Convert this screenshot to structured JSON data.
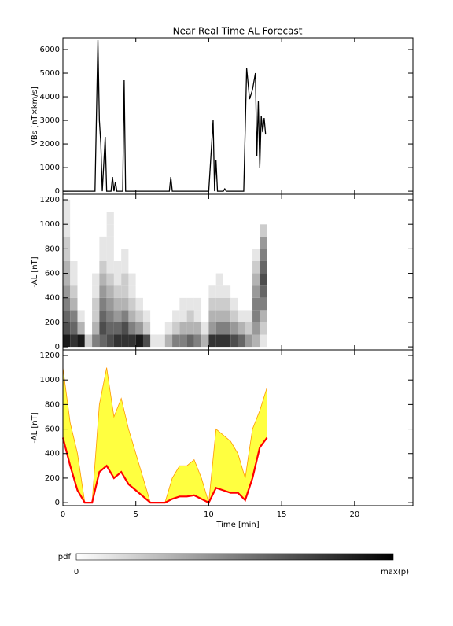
{
  "chart_data": [
    {
      "type": "line",
      "title": "Near Real Time AL Forecast",
      "ylabel": "VBs [nT×km/s]",
      "x": [
        0,
        2.2,
        2.4,
        2.5,
        2.6,
        2.7,
        2.9,
        3.0,
        3.3,
        3.4,
        3.5,
        3.6,
        3.7,
        4.1,
        4.2,
        4.3,
        7.3,
        7.4,
        7.5,
        10.0,
        10.3,
        10.4,
        10.5,
        10.6,
        11.0,
        11.1,
        11.2,
        12.4,
        12.6,
        12.8,
        13.0,
        13.2,
        13.3,
        13.4,
        13.5,
        13.6,
        13.7,
        13.8,
        13.9
      ],
      "series": [
        {
          "color": "#000000",
          "values": [
            0,
            0,
            6400,
            3000,
            2000,
            0,
            2300,
            0,
            0,
            600,
            0,
            400,
            0,
            0,
            4700,
            0,
            0,
            600,
            0,
            0,
            3000,
            0,
            1300,
            0,
            0,
            100,
            0,
            0,
            5200,
            3900,
            4300,
            5000,
            1500,
            3800,
            1000,
            3200,
            2500,
            3100,
            2400
          ]
        }
      ],
      "xlim": [
        0,
        24
      ],
      "xticks": [
        0,
        5,
        10,
        15,
        20
      ],
      "ylim": [
        -130,
        6500
      ],
      "yticks": [
        0,
        1000,
        2000,
        3000,
        4000,
        5000,
        6000
      ]
    },
    {
      "type": "heatmap",
      "ylabel": "-AL [nT]",
      "xbins": [
        0,
        0.5,
        1,
        1.5,
        2,
        2.5,
        3,
        3.5,
        4,
        4.5,
        5,
        5.5,
        6,
        6.5,
        7,
        7.5,
        8,
        8.5,
        9,
        9.5,
        10,
        10.5,
        11,
        11.5,
        12,
        12.5,
        13,
        13.5,
        14
      ],
      "ybins": [
        0,
        100,
        200,
        300,
        400,
        500,
        600,
        700,
        800,
        900,
        1000,
        1100,
        1200
      ],
      "z": [
        [
          0.9,
          0.7,
          0.6,
          0.5,
          0.4,
          0.3,
          0.3,
          0.2,
          0.2,
          0.1,
          0.1,
          0.1
        ],
        [
          0.8,
          0.6,
          0.5,
          0.3,
          0.2,
          0.1,
          0.1,
          0,
          0,
          0,
          0,
          0
        ],
        [
          0.9,
          0.3,
          0.1,
          0,
          0,
          0,
          0,
          0,
          0,
          0,
          0,
          0
        ],
        [
          0.2,
          0,
          0,
          0,
          0,
          0,
          0,
          0,
          0,
          0,
          0,
          0
        ],
        [
          0.5,
          0.3,
          0.2,
          0.2,
          0.1,
          0.1,
          0,
          0,
          0,
          0,
          0,
          0
        ],
        [
          0.6,
          0.7,
          0.6,
          0.5,
          0.4,
          0.3,
          0.2,
          0.1,
          0.1,
          0,
          0,
          0
        ],
        [
          0.7,
          0.6,
          0.5,
          0.4,
          0.3,
          0.2,
          0.1,
          0.1,
          0.1,
          0.1,
          0.1,
          0
        ],
        [
          0.8,
          0.6,
          0.4,
          0.3,
          0.2,
          0.1,
          0.1,
          0,
          0,
          0,
          0,
          0
        ],
        [
          0.8,
          0.7,
          0.5,
          0.3,
          0.2,
          0.2,
          0.1,
          0.1,
          0,
          0,
          0,
          0
        ],
        [
          0.8,
          0.5,
          0.3,
          0.2,
          0.1,
          0.1,
          0,
          0,
          0,
          0,
          0,
          0
        ],
        [
          0.9,
          0.4,
          0.2,
          0.1,
          0,
          0,
          0,
          0,
          0,
          0,
          0,
          0
        ],
        [
          0.7,
          0.2,
          0.1,
          0,
          0,
          0,
          0,
          0,
          0,
          0,
          0,
          0
        ],
        [
          0.1,
          0,
          0,
          0,
          0,
          0,
          0,
          0,
          0,
          0,
          0,
          0
        ],
        [
          0.1,
          0,
          0,
          0,
          0,
          0,
          0,
          0,
          0,
          0,
          0,
          0
        ],
        [
          0.3,
          0.1,
          0,
          0,
          0,
          0,
          0,
          0,
          0,
          0,
          0,
          0
        ],
        [
          0.5,
          0.2,
          0.1,
          0,
          0,
          0,
          0,
          0,
          0,
          0,
          0,
          0
        ],
        [
          0.5,
          0.3,
          0.1,
          0.1,
          0,
          0,
          0,
          0,
          0,
          0,
          0,
          0
        ],
        [
          0.6,
          0.3,
          0.2,
          0.1,
          0,
          0,
          0,
          0,
          0,
          0,
          0,
          0
        ],
        [
          0.5,
          0.3,
          0.1,
          0.1,
          0,
          0,
          0,
          0,
          0,
          0,
          0,
          0
        ],
        [
          0.3,
          0.1,
          0,
          0,
          0,
          0,
          0,
          0,
          0,
          0,
          0,
          0
        ],
        [
          0.8,
          0.4,
          0.3,
          0.2,
          0.1,
          0,
          0,
          0,
          0,
          0,
          0,
          0
        ],
        [
          0.8,
          0.5,
          0.3,
          0.2,
          0.1,
          0.1,
          0,
          0,
          0,
          0,
          0,
          0
        ],
        [
          0.8,
          0.5,
          0.3,
          0.2,
          0.1,
          0,
          0,
          0,
          0,
          0,
          0,
          0
        ],
        [
          0.7,
          0.4,
          0.2,
          0.1,
          0,
          0,
          0,
          0,
          0,
          0,
          0,
          0
        ],
        [
          0.6,
          0.3,
          0.1,
          0,
          0,
          0,
          0,
          0,
          0,
          0,
          0,
          0
        ],
        [
          0.4,
          0.2,
          0.1,
          0,
          0,
          0,
          0,
          0,
          0,
          0,
          0,
          0
        ],
        [
          0.3,
          0.4,
          0.5,
          0.5,
          0.4,
          0.3,
          0.2,
          0.1,
          0,
          0,
          0,
          0
        ],
        [
          0.1,
          0.2,
          0.3,
          0.5,
          0.6,
          0.7,
          0.6,
          0.5,
          0.4,
          0.2,
          0,
          0
        ]
      ],
      "colorbar": {
        "label": "pdf",
        "min_label": "0",
        "max_label": "max(p)",
        "colors": [
          "#ffffff",
          "#000000"
        ]
      },
      "xlim": [
        0,
        24
      ],
      "xticks": [
        0,
        5,
        10,
        15,
        20
      ],
      "ylim": [
        -25,
        1245
      ],
      "yticks": [
        0,
        200,
        400,
        600,
        800,
        1000,
        1200
      ]
    },
    {
      "type": "area",
      "ylabel": "-AL [nT]",
      "xlabel": "Time [min]",
      "fill_color": "#ffff40",
      "x": [
        0,
        0.5,
        1,
        1.5,
        2,
        2.5,
        3,
        3.5,
        4,
        4.5,
        5,
        5.5,
        6,
        6.5,
        7,
        7.5,
        8,
        8.5,
        9,
        9.5,
        10,
        10.5,
        11,
        11.5,
        12,
        12.5,
        13,
        13.5,
        14
      ],
      "series": [
        {
          "color": "#ff9900",
          "values": [
            1100,
            650,
            400,
            0,
            0,
            800,
            1100,
            700,
            850,
            600,
            400,
            200,
            0,
            0,
            0,
            200,
            300,
            300,
            350,
            200,
            0,
            600,
            550,
            500,
            400,
            200,
            600,
            750,
            940
          ]
        },
        {
          "color": "#ff0000",
          "values": [
            530,
            300,
            100,
            0,
            0,
            250,
            300,
            200,
            250,
            150,
            100,
            50,
            0,
            0,
            0,
            30,
            50,
            50,
            60,
            30,
            0,
            120,
            100,
            80,
            80,
            20,
            200,
            450,
            530
          ]
        }
      ],
      "xlim": [
        0,
        24
      ],
      "xticks": [
        0,
        5,
        10,
        15,
        20
      ],
      "ylim": [
        -25,
        1245
      ],
      "yticks": [
        0,
        200,
        400,
        600,
        800,
        1000,
        1200
      ]
    }
  ]
}
